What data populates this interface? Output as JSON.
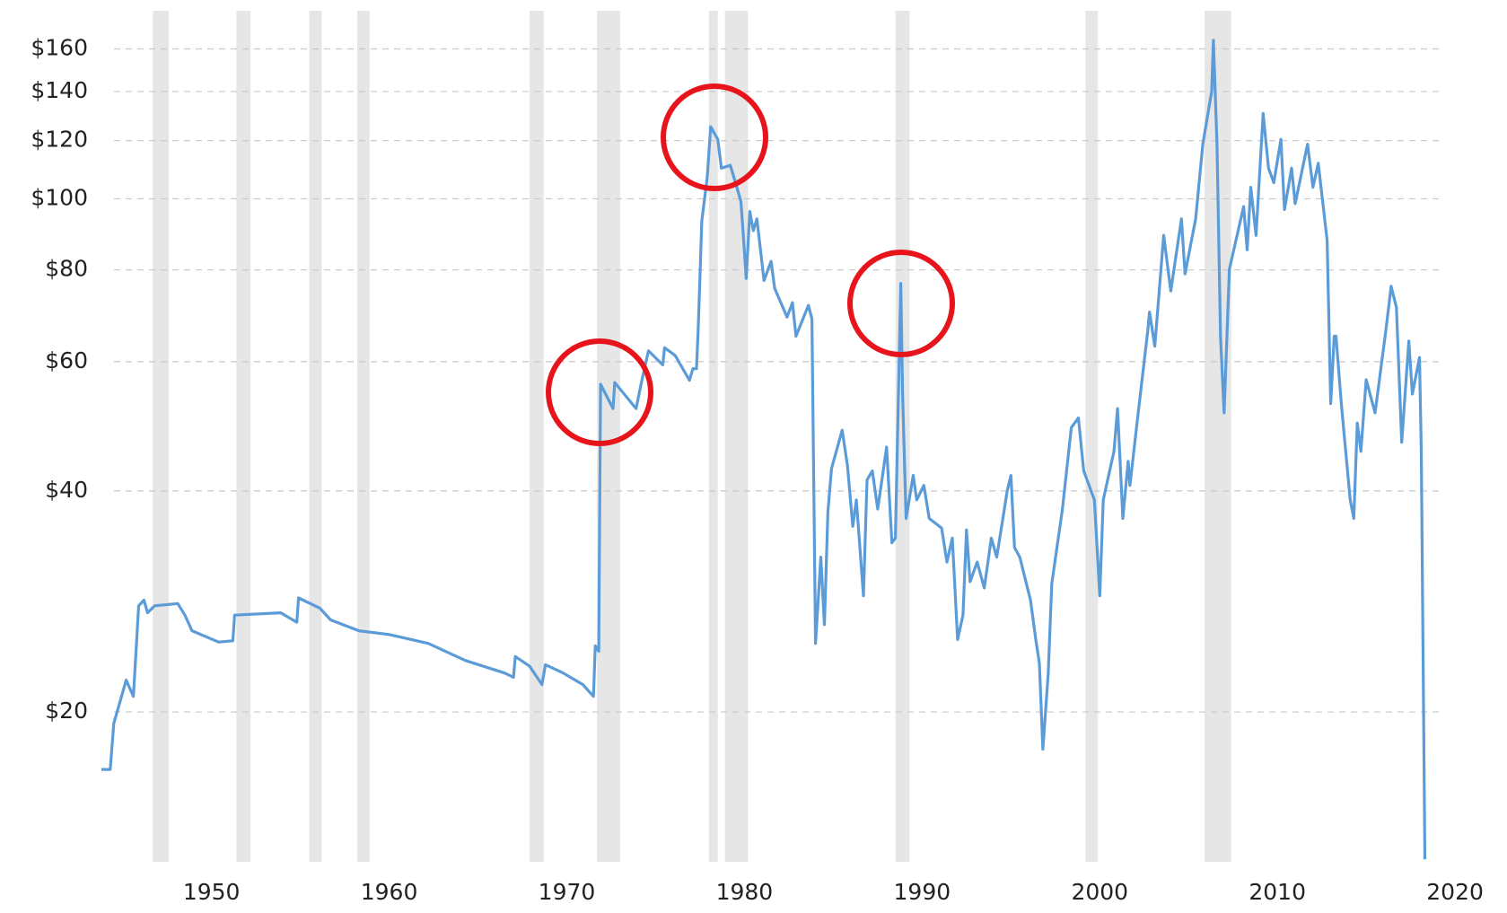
{
  "chart_data": {
    "type": "line",
    "x": [
      1943.8,
      1944.3,
      1944.5,
      1945.2,
      1945.6,
      1945.7,
      1945.9,
      1946.2,
      1946.4,
      1946.8,
      1948.1,
      1948.5,
      1948.9,
      1950.4,
      1951.2,
      1951.3,
      1953.9,
      1954.8,
      1954.9,
      1956.1,
      1956.7,
      1958.3,
      1960.0,
      1962.2,
      1964.3,
      1966.5,
      1967.0,
      1967.1,
      1967.9,
      1968.6,
      1968.8,
      1969.8,
      1970.9,
      1971.5,
      1971.6,
      1971.8,
      1971.9,
      1972.6,
      1972.7,
      1973.9,
      1974.2,
      1974.6,
      1975.4,
      1975.5,
      1976.1,
      1976.9,
      1977.1,
      1977.3,
      1977.4,
      1977.6,
      1977.9,
      1978.1,
      1978.5,
      1978.7,
      1979.2,
      1979.5,
      1979.8,
      1979.9,
      1980.1,
      1980.3,
      1980.5,
      1980.7,
      1981.1,
      1981.5,
      1981.7,
      1982.4,
      1982.7,
      1982.9,
      1983.6,
      1983.8,
      1984.0,
      1984.3,
      1984.5,
      1984.7,
      1984.9,
      1985.5,
      1985.8,
      1986.1,
      1986.3,
      1986.7,
      1986.9,
      1987.2,
      1987.5,
      1988.0,
      1988.3,
      1988.5,
      1988.8,
      1988.9,
      1989.1,
      1989.5,
      1989.7,
      1990.1,
      1990.4,
      1991.1,
      1991.4,
      1991.7,
      1992.0,
      1992.3,
      1992.5,
      1992.7,
      1993.1,
      1993.5,
      1993.9,
      1994.2,
      1994.8,
      1995.0,
      1995.2,
      1995.5,
      1996.1,
      1996.4,
      1996.6,
      1996.8,
      1997.1,
      1997.3,
      1997.9,
      1998.4,
      1998.8,
      1999.1,
      1999.7,
      2000.0,
      2000.2,
      2000.8,
      2001.0,
      2001.3,
      2001.6,
      2001.7,
      2002.1,
      2002.7,
      2002.8,
      2003.1,
      2003.6,
      2004.0,
      2004.6,
      2004.8,
      2005.4,
      2005.8,
      2006.3,
      2006.4,
      2006.6,
      2006.8,
      2007.0,
      2007.1,
      2007.3,
      2008.1,
      2008.3,
      2008.5,
      2008.8,
      2009.2,
      2009.5,
      2009.8,
      2010.2,
      2010.4,
      2010.8,
      2011.0,
      2011.7,
      2012.0,
      2012.3,
      2012.8,
      2013.0,
      2013.2,
      2013.3,
      2013.6,
      2014.1,
      2014.3,
      2014.5,
      2014.7,
      2015.0,
      2015.5,
      2016.1,
      2016.4,
      2016.7,
      2017.0,
      2017.4,
      2017.6,
      2018.0,
      2018.1,
      2018.3
    ],
    "series": [
      {
        "color": "#5b9bd8",
        "values": [
          16.7,
          16.7,
          19.3,
          22.1,
          21.0,
          23.0,
          27.9,
          28.4,
          27.3,
          27.9,
          28.1,
          27.1,
          25.8,
          24.9,
          25.0,
          27.1,
          27.3,
          26.5,
          28.6,
          27.7,
          26.7,
          25.8,
          25.5,
          24.8,
          23.5,
          22.6,
          22.3,
          23.8,
          23.1,
          21.8,
          23.2,
          22.6,
          21.8,
          21.0,
          24.6,
          24.2,
          55.9,
          51.8,
          56.2,
          51.8,
          56.2,
          62.1,
          59.4,
          62.7,
          61.2,
          56.6,
          58.7,
          58.7,
          67.0,
          93.3,
          106.8,
          125.4,
          120.5,
          110.1,
          111.1,
          105.2,
          99.1,
          91.9,
          77.9,
          96.1,
          90.5,
          93.9,
          77.4,
          82.2,
          75.5,
          69.0,
          72.2,
          65.0,
          71.6,
          68.6,
          24.8,
          32.5,
          26.3,
          37.5,
          42.9,
          48.4,
          43.3,
          35.8,
          38.9,
          28.8,
          41.4,
          42.6,
          37.8,
          45.9,
          34.0,
          34.5,
          76.7,
          54.2,
          36.7,
          42.0,
          38.9,
          40.7,
          36.7,
          35.6,
          32.0,
          34.5,
          25.1,
          27.1,
          35.4,
          30.1,
          32.0,
          29.5,
          34.5,
          32.5,
          40.1,
          42.0,
          33.5,
          32.5,
          28.4,
          25.1,
          23.3,
          17.8,
          22.6,
          29.9,
          37.8,
          48.8,
          50.3,
          42.6,
          38.9,
          28.8,
          38.9,
          45.3,
          51.8,
          36.7,
          43.9,
          40.7,
          49.5,
          66.0,
          70.1,
          63.0,
          89.2,
          74.9,
          93.9,
          79.0,
          93.9,
          118.7,
          140.1,
          164.4,
          118.7,
          65.0,
          51.1,
          59.4,
          80.2,
          97.6,
          85.2,
          103.7,
          89.2,
          130.7,
          110.1,
          105.2,
          120.5,
          96.7,
          110.1,
          98.5,
          118.7,
          103.7,
          111.8,
          87.8,
          52.6,
          65.0,
          65.0,
          52.6,
          38.9,
          36.7,
          49.5,
          45.3,
          56.7,
          51.1,
          66.0,
          76.0,
          71.1,
          46.6,
          64.0,
          54.2,
          60.8,
          45.3,
          12.6
        ]
      }
    ],
    "recession_bands": [
      [
        1946.7,
        1947.6
      ],
      [
        1951.4,
        1952.2
      ],
      [
        1955.5,
        1956.2
      ],
      [
        1958.2,
        1958.9
      ],
      [
        1967.9,
        1968.7
      ],
      [
        1971.7,
        1973.0
      ],
      [
        1978.0,
        1978.5
      ],
      [
        1978.9,
        1980.2
      ],
      [
        1988.5,
        1989.3
      ],
      [
        1999.2,
        1999.9
      ],
      [
        2005.9,
        2007.4
      ]
    ],
    "band_color": "#e6e6e6",
    "xlim": [
      1943.5,
      2020.5
    ],
    "xticks": [
      1950,
      1960,
      1970,
      1980,
      1990,
      2000,
      2010,
      2020
    ],
    "ylim": [
      12.5,
      170
    ],
    "yticks": [
      {
        "value": 20,
        "label": "$20"
      },
      {
        "value": 40,
        "label": "$40"
      },
      {
        "value": 60,
        "label": "$60"
      },
      {
        "value": 80,
        "label": "$80"
      },
      {
        "value": 100,
        "label": "$100"
      },
      {
        "value": 120,
        "label": "$120"
      },
      {
        "value": 140,
        "label": "$140"
      },
      {
        "value": 160,
        "label": "$160"
      }
    ],
    "log_y": true,
    "grid": true
  }
}
